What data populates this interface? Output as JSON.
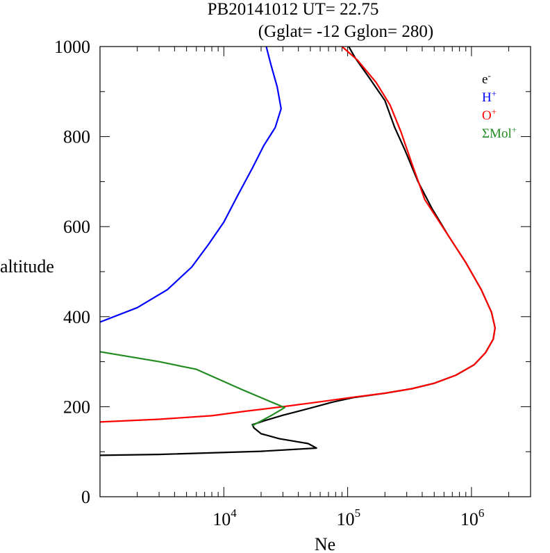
{
  "chart_data": {
    "type": "line",
    "title_line1": "PB20141012   UT=  22.75",
    "title_line2": "(Gglat= -12   Gglon=  280)",
    "xlabel": "Ne",
    "ylabel": "altitude",
    "xscale": "log",
    "xlim": [
      1000,
      3000000
    ],
    "ylim": [
      0,
      1000
    ],
    "x_ticks": [
      {
        "base": "10",
        "exp": "4",
        "value": 10000
      },
      {
        "base": "10",
        "exp": "5",
        "value": 100000
      },
      {
        "base": "10",
        "exp": "6",
        "value": 1000000
      }
    ],
    "y_ticks": [
      "0",
      "200",
      "400",
      "600",
      "800",
      "1000"
    ],
    "legend_position": "top-right",
    "series": [
      {
        "name": "e-",
        "label": "e",
        "sup": "-",
        "color": "#000000",
        "points": [
          [
            1000,
            92
          ],
          [
            3000,
            94
          ],
          [
            20000,
            101
          ],
          [
            56000,
            108
          ],
          [
            48000,
            118
          ],
          [
            28000,
            129
          ],
          [
            20000,
            140
          ],
          [
            17500,
            153
          ],
          [
            17000,
            160
          ],
          [
            22000,
            170
          ],
          [
            30000,
            181
          ],
          [
            40000,
            190
          ],
          [
            55000,
            200
          ],
          [
            75000,
            210
          ],
          [
            110000,
            220
          ],
          [
            200000,
            230
          ],
          [
            330000,
            240
          ],
          [
            500000,
            252
          ],
          [
            750000,
            270
          ],
          [
            1050000,
            293
          ],
          [
            1300000,
            320
          ],
          [
            1500000,
            350
          ],
          [
            1550000,
            375
          ],
          [
            1450000,
            410
          ],
          [
            1200000,
            460
          ],
          [
            900000,
            520
          ],
          [
            650000,
            580
          ],
          [
            480000,
            640
          ],
          [
            370000,
            700
          ],
          [
            290000,
            770
          ],
          [
            240000,
            820
          ],
          [
            200000,
            880
          ],
          [
            150000,
            930
          ],
          [
            115000,
            975
          ],
          [
            102000,
            1000
          ]
        ]
      },
      {
        "name": "H+",
        "label": "H",
        "sup": "+",
        "color": "#0000ff",
        "points": [
          [
            1000,
            388
          ],
          [
            2000,
            420
          ],
          [
            3500,
            460
          ],
          [
            5500,
            510
          ],
          [
            7500,
            560
          ],
          [
            10000,
            610
          ],
          [
            13000,
            670
          ],
          [
            17000,
            730
          ],
          [
            21000,
            780
          ],
          [
            26000,
            820
          ],
          [
            29000,
            862
          ],
          [
            27000,
            910
          ],
          [
            24000,
            960
          ],
          [
            22000,
            1000
          ]
        ]
      },
      {
        "name": "O+",
        "label": "O",
        "sup": "+",
        "color": "#ff0000",
        "points": [
          [
            1000,
            166
          ],
          [
            3000,
            172
          ],
          [
            8000,
            180
          ],
          [
            15000,
            190
          ],
          [
            30000,
            200
          ],
          [
            60000,
            211
          ],
          [
            110000,
            221
          ],
          [
            200000,
            230
          ],
          [
            330000,
            240
          ],
          [
            500000,
            252
          ],
          [
            750000,
            270
          ],
          [
            1050000,
            293
          ],
          [
            1300000,
            320
          ],
          [
            1500000,
            350
          ],
          [
            1550000,
            375
          ],
          [
            1450000,
            410
          ],
          [
            1200000,
            460
          ],
          [
            900000,
            520
          ],
          [
            650000,
            580
          ],
          [
            420000,
            660
          ],
          [
            330000,
            740
          ],
          [
            270000,
            810
          ],
          [
            220000,
            870
          ],
          [
            170000,
            920
          ],
          [
            120000,
            970
          ],
          [
            90000,
            1000
          ]
        ]
      },
      {
        "name": "ΣMol+",
        "label": "ΣMol",
        "sup": "+",
        "color": "#228b22",
        "points": [
          [
            1000,
            322
          ],
          [
            3000,
            300
          ],
          [
            6000,
            283
          ],
          [
            14000,
            238
          ],
          [
            31000,
            198
          ],
          [
            24000,
            180
          ],
          [
            17000,
            158
          ]
        ]
      }
    ]
  }
}
